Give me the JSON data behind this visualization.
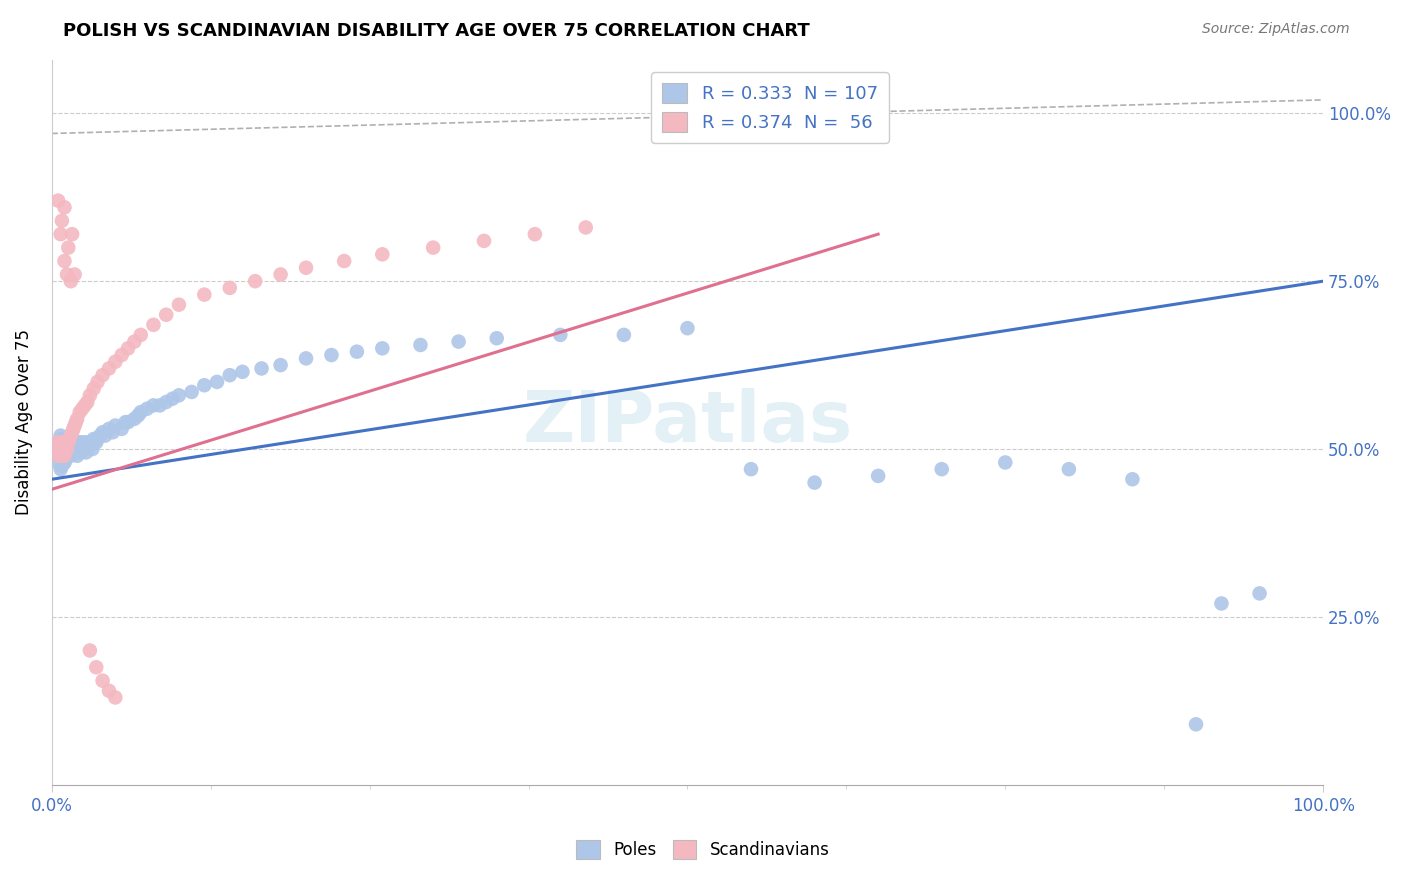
{
  "title": "POLISH VS SCANDINAVIAN DISABILITY AGE OVER 75 CORRELATION CHART",
  "source": "Source: ZipAtlas.com",
  "ylabel": "Disability Age Over 75",
  "blue_r": "0.333",
  "blue_n": "107",
  "pink_r": "0.374",
  "pink_n": " 56",
  "blue_color": "#aec6e8",
  "pink_color": "#f4b8c1",
  "blue_line_color": "#4472c4",
  "pink_line_color": "#e07090",
  "ref_line_color": "#b0b0b0",
  "blue_line_x0": 0.0,
  "blue_line_y0": 0.455,
  "blue_line_x1": 1.0,
  "blue_line_y1": 0.75,
  "pink_line_x0": 0.0,
  "pink_line_y0": 0.44,
  "pink_line_x1": 0.65,
  "pink_line_y1": 0.82,
  "ref_line_x0": 0.0,
  "ref_line_y0": 0.97,
  "ref_line_x1": 1.0,
  "ref_line_y1": 1.02,
  "poles_x": [
    0.005,
    0.005,
    0.005,
    0.007,
    0.007,
    0.007,
    0.007,
    0.007,
    0.008,
    0.008,
    0.008,
    0.009,
    0.009,
    0.009,
    0.01,
    0.01,
    0.01,
    0.01,
    0.01,
    0.01,
    0.01,
    0.01,
    0.01,
    0.01,
    0.012,
    0.012,
    0.012,
    0.012,
    0.013,
    0.013,
    0.013,
    0.013,
    0.014,
    0.014,
    0.014,
    0.015,
    0.015,
    0.015,
    0.016,
    0.016,
    0.017,
    0.017,
    0.018,
    0.018,
    0.019,
    0.02,
    0.02,
    0.021,
    0.022,
    0.022,
    0.023,
    0.024,
    0.025,
    0.026,
    0.027,
    0.028,
    0.03,
    0.031,
    0.032,
    0.033,
    0.035,
    0.036,
    0.038,
    0.04,
    0.042,
    0.045,
    0.048,
    0.05,
    0.055,
    0.058,
    0.06,
    0.065,
    0.068,
    0.07,
    0.075,
    0.08,
    0.085,
    0.09,
    0.095,
    0.1,
    0.11,
    0.12,
    0.13,
    0.14,
    0.15,
    0.165,
    0.18,
    0.2,
    0.22,
    0.24,
    0.26,
    0.29,
    0.32,
    0.35,
    0.4,
    0.45,
    0.5,
    0.55,
    0.6,
    0.65,
    0.7,
    0.75,
    0.8,
    0.85,
    0.9,
    0.92,
    0.95
  ],
  "poles_y": [
    0.49,
    0.51,
    0.48,
    0.5,
    0.52,
    0.47,
    0.49,
    0.505,
    0.495,
    0.515,
    0.475,
    0.5,
    0.49,
    0.51,
    0.48,
    0.5,
    0.51,
    0.49,
    0.5,
    0.51,
    0.49,
    0.5,
    0.51,
    0.48,
    0.5,
    0.51,
    0.49,
    0.505,
    0.495,
    0.51,
    0.5,
    0.49,
    0.505,
    0.495,
    0.51,
    0.5,
    0.49,
    0.51,
    0.495,
    0.505,
    0.5,
    0.51,
    0.495,
    0.505,
    0.5,
    0.51,
    0.49,
    0.505,
    0.5,
    0.51,
    0.495,
    0.505,
    0.51,
    0.5,
    0.495,
    0.51,
    0.505,
    0.51,
    0.5,
    0.515,
    0.51,
    0.515,
    0.52,
    0.525,
    0.52,
    0.53,
    0.525,
    0.535,
    0.53,
    0.54,
    0.54,
    0.545,
    0.55,
    0.555,
    0.56,
    0.565,
    0.565,
    0.57,
    0.575,
    0.58,
    0.585,
    0.595,
    0.6,
    0.61,
    0.615,
    0.62,
    0.625,
    0.635,
    0.64,
    0.645,
    0.65,
    0.655,
    0.66,
    0.665,
    0.67,
    0.67,
    0.68,
    0.47,
    0.45,
    0.46,
    0.47,
    0.48,
    0.47,
    0.455,
    0.09,
    0.27,
    0.285
  ],
  "scands_x": [
    0.005,
    0.005,
    0.005,
    0.007,
    0.007,
    0.008,
    0.008,
    0.009,
    0.009,
    0.01,
    0.01,
    0.01,
    0.01,
    0.012,
    0.012,
    0.013,
    0.014,
    0.015,
    0.016,
    0.017,
    0.018,
    0.019,
    0.02,
    0.022,
    0.024,
    0.026,
    0.028,
    0.03,
    0.033,
    0.036,
    0.04,
    0.045,
    0.05,
    0.055,
    0.06,
    0.065,
    0.07,
    0.08,
    0.09,
    0.1,
    0.12,
    0.14,
    0.16,
    0.18,
    0.2,
    0.23,
    0.26,
    0.3,
    0.34,
    0.38,
    0.42,
    0.03,
    0.035,
    0.04,
    0.045,
    0.05
  ],
  "scands_y": [
    0.5,
    0.49,
    0.51,
    0.495,
    0.505,
    0.49,
    0.51,
    0.5,
    0.495,
    0.505,
    0.5,
    0.51,
    0.49,
    0.5,
    0.51,
    0.51,
    0.515,
    0.52,
    0.525,
    0.53,
    0.535,
    0.54,
    0.545,
    0.555,
    0.56,
    0.565,
    0.57,
    0.58,
    0.59,
    0.6,
    0.61,
    0.62,
    0.63,
    0.64,
    0.65,
    0.66,
    0.67,
    0.685,
    0.7,
    0.715,
    0.73,
    0.74,
    0.75,
    0.76,
    0.77,
    0.78,
    0.79,
    0.8,
    0.81,
    0.82,
    0.83,
    0.2,
    0.175,
    0.155,
    0.14,
    0.13
  ],
  "scands_high_x": [
    0.005,
    0.007,
    0.008,
    0.01,
    0.01,
    0.012,
    0.013,
    0.015,
    0.016,
    0.018
  ],
  "scands_high_y": [
    0.87,
    0.82,
    0.84,
    0.86,
    0.78,
    0.76,
    0.8,
    0.75,
    0.82,
    0.76
  ],
  "xmin": 0.0,
  "xmax": 1.0,
  "ymin": 0.0,
  "ymax": 1.08
}
